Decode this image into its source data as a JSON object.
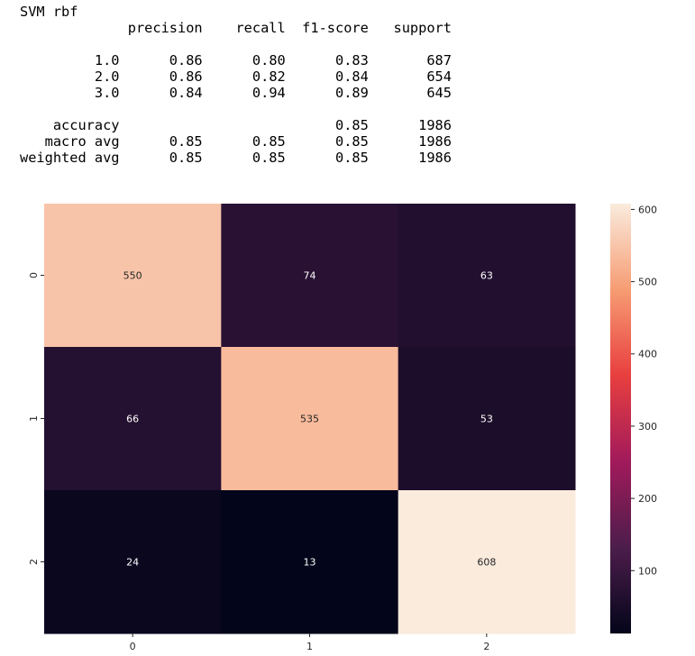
{
  "report": {
    "title": "SVM rbf",
    "header": [
      "precision",
      "recall",
      "f1-score",
      "support"
    ],
    "rows": [
      {
        "label": "1.0",
        "precision": "0.86",
        "recall": "0.80",
        "f1": "0.83",
        "support": "687"
      },
      {
        "label": "2.0",
        "precision": "0.86",
        "recall": "0.82",
        "f1": "0.84",
        "support": "654"
      },
      {
        "label": "3.0",
        "precision": "0.84",
        "recall": "0.94",
        "f1": "0.89",
        "support": "645"
      }
    ],
    "summary": [
      {
        "label": "accuracy",
        "precision": "",
        "recall": "",
        "f1": "0.85",
        "support": "1986"
      },
      {
        "label": "macro avg",
        "precision": "0.85",
        "recall": "0.85",
        "f1": "0.85",
        "support": "1986"
      },
      {
        "label": "weighted avg",
        "precision": "0.85",
        "recall": "0.85",
        "f1": "0.85",
        "support": "1986"
      }
    ]
  },
  "chart_data": {
    "type": "heatmap",
    "title": "",
    "xlabel": "",
    "ylabel": "",
    "x_labels": [
      "0",
      "1",
      "2"
    ],
    "y_labels": [
      "0",
      "1",
      "2"
    ],
    "matrix": [
      [
        550,
        74,
        63
      ],
      [
        66,
        535,
        53
      ],
      [
        24,
        13,
        608
      ]
    ],
    "colorbar": {
      "min": 13,
      "max": 608,
      "ticks": [
        100,
        200,
        300,
        400,
        500,
        600
      ]
    },
    "colormap": [
      "#03051a",
      "#4c1d4b",
      "#a11a5b",
      "#e83f3f",
      "#f69c73",
      "#faebdd"
    ],
    "grid": false
  }
}
